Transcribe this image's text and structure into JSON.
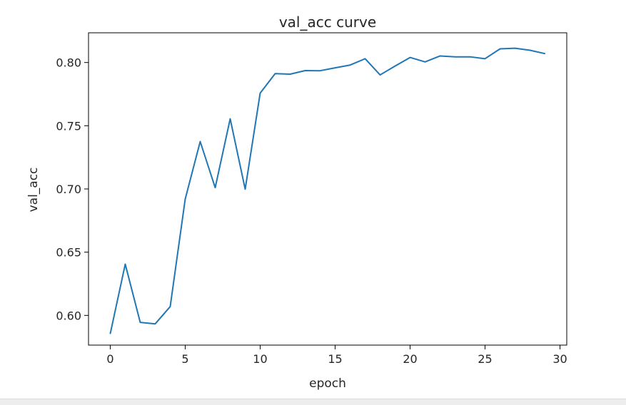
{
  "chart_data": {
    "type": "line",
    "title": "val_acc curve",
    "xlabel": "epoch",
    "ylabel": "val_acc",
    "xlim": [
      -1.45,
      30.45
    ],
    "ylim": [
      0.5765,
      0.8235
    ],
    "xticks": [
      0,
      5,
      10,
      15,
      20,
      25,
      30
    ],
    "yticks": [
      0.6,
      0.65,
      0.7,
      0.75,
      0.8
    ],
    "grid": false,
    "line_color": "#1f77b4",
    "series": [
      {
        "x": [
          0,
          1,
          2,
          3,
          4,
          5,
          6,
          7,
          8,
          9,
          10,
          11,
          12,
          13,
          14,
          15,
          16,
          17,
          18,
          19,
          20,
          21,
          22,
          23,
          24,
          25,
          26,
          27,
          28,
          29
        ],
        "values": [
          0.5855,
          0.6405,
          0.5945,
          0.5933,
          0.607,
          0.692,
          0.7375,
          0.701,
          0.7555,
          0.6998,
          0.7758,
          0.7912,
          0.7908,
          0.7936,
          0.7935,
          0.7958,
          0.798,
          0.803,
          0.7902,
          0.7972,
          0.804,
          0.8005,
          0.8052,
          0.8045,
          0.8045,
          0.803,
          0.8108,
          0.8113,
          0.8097,
          0.807
        ]
      }
    ]
  }
}
